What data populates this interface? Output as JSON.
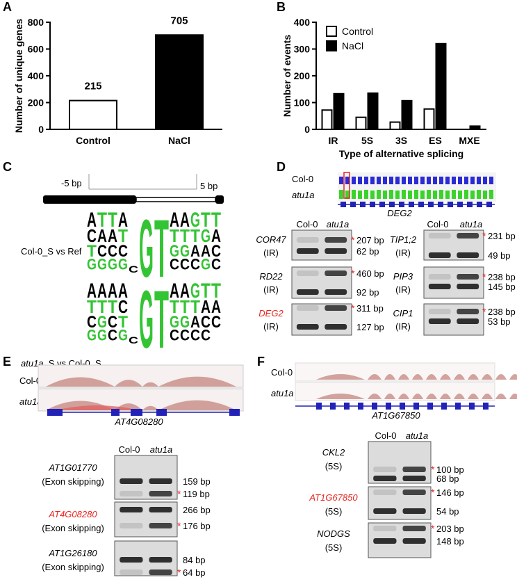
{
  "chart_data": [
    {
      "type": "bar",
      "label": "A",
      "ylabel": "Number of unique genes",
      "categories": [
        "Control",
        "NaCl"
      ],
      "values": [
        215,
        705
      ],
      "colors": [
        "#ffffff",
        "#000000"
      ],
      "ylim": [
        0,
        800
      ],
      "yticks": [
        0,
        200,
        400,
        600,
        800
      ]
    },
    {
      "type": "grouped_bar",
      "label": "B",
      "ylabel": "Number of events",
      "xlabel": "Type of alternative splicing",
      "categories": [
        "IR",
        "5S",
        "3S",
        "ES",
        "MXE"
      ],
      "series": [
        {
          "name": "Control",
          "color": "#ffffff",
          "values": [
            72,
            45,
            27,
            76,
            0
          ]
        },
        {
          "name": "NaCl",
          "color": "#000000",
          "values": [
            133,
            135,
            107,
            320,
            12
          ]
        }
      ],
      "ylim": [
        0,
        400
      ],
      "yticks": [
        0,
        100,
        200,
        300,
        400
      ],
      "legend": "top-left"
    }
  ],
  "panel_c": {
    "label": "C",
    "left_mark": "-5 bp",
    "right_mark": "5 bp",
    "letter_colors": {
      "A": "#000000",
      "C": "#000000",
      "G": "#33c433",
      "T": "#33c433"
    },
    "logos": [
      {
        "title": [
          {
            "text": "Col-0_S vs Ref"
          }
        ],
        "columns": [
          [
            "A",
            "C",
            "T",
            "G"
          ],
          [
            "T",
            "A",
            "C",
            "G"
          ],
          [
            "T",
            "A",
            "C",
            "G"
          ],
          [
            "A",
            "T",
            "C",
            "G"
          ],
          [
            "C"
          ],
          [
            "G"
          ],
          [
            "T"
          ],
          [
            "A",
            "T",
            "G",
            "C"
          ],
          [
            "A",
            "T",
            "G",
            "C"
          ],
          [
            "G",
            "T",
            "A",
            "C"
          ],
          [
            "T",
            "G",
            "A",
            "G"
          ],
          [
            "T",
            "A",
            "C",
            "C"
          ]
        ]
      },
      {
        "title": [
          {
            "text": "atu1a",
            "italic": true
          },
          {
            "text": "_S vs Col-0_S"
          }
        ],
        "columns": [
          [
            "A",
            "T",
            "C",
            "G"
          ],
          [
            "A",
            "T",
            "G",
            "G"
          ],
          [
            "A",
            "T",
            "C",
            "C"
          ],
          [
            "A",
            "C",
            "T",
            "G"
          ],
          [
            "C"
          ],
          [
            "G"
          ],
          [
            "T"
          ],
          [
            "A",
            "T",
            "G",
            "C"
          ],
          [
            "A",
            "T",
            "G",
            "C"
          ],
          [
            "G",
            "T",
            "A",
            "C"
          ],
          [
            "T",
            "A",
            "C",
            "C"
          ],
          [
            "T",
            "A",
            "C"
          ]
        ]
      }
    ]
  },
  "panel_d": {
    "label": "D",
    "lanes": [
      "Col-0",
      "atu1a"
    ],
    "gene": "DEG2",
    "gels": [
      {
        "gene": "COR47",
        "type": "(IR)",
        "bands": [
          {
            "size": "207 bp",
            "star": "*"
          },
          {
            "size": "62 bp"
          }
        ]
      },
      {
        "gene": "RD22",
        "type": "(IR)",
        "bands": [
          {
            "size": "460 bp",
            "star": "*"
          },
          {
            "size": "92 bp"
          }
        ]
      },
      {
        "gene": "DEG2",
        "color": "#e8251f",
        "type": "(IR)",
        "bands": [
          {
            "size": "311 bp",
            "star": "*"
          },
          {
            "size": "127 bp"
          }
        ]
      },
      {
        "gene": "TIP1;2",
        "type": "(IR)",
        "bands": [
          {
            "size": "231 bp",
            "star": "*"
          },
          {
            "size": "49 bp"
          }
        ]
      },
      {
        "gene": "PIP3",
        "type": "(IR)",
        "bands": [
          {
            "size": "238 bp",
            "star": "*"
          },
          {
            "size": "145 bp"
          }
        ]
      },
      {
        "gene": "CIP1",
        "type": "(IR)",
        "bands": [
          {
            "size": "238 bp",
            "star": "*"
          },
          {
            "size": "53 bp"
          }
        ]
      }
    ]
  },
  "panel_e": {
    "label": "E",
    "lanes": [
      "Col-0",
      "atu1a"
    ],
    "gene": "AT4G08280",
    "gels": [
      {
        "gene": "AT1G01770",
        "type": "(Exon skipping)",
        "bands": [
          {
            "size": "159 bp"
          },
          {
            "size": "119 bp",
            "star": "*"
          }
        ]
      },
      {
        "gene": "AT4G08280",
        "color": "#e8251f",
        "type": "(Exon skipping)",
        "bands": [
          {
            "size": "266 bp"
          },
          {
            "size": "176 bp",
            "star": "*"
          }
        ]
      },
      {
        "gene": "AT1G26180",
        "type": "(Exon skipping)",
        "bands": [
          {
            "size": "84 bp"
          },
          {
            "size": "64 bp",
            "star": "*"
          }
        ]
      }
    ]
  },
  "panel_f": {
    "label": "F",
    "lanes": [
      "Col-0",
      "atu1a"
    ],
    "gene": "AT1G67850",
    "gels": [
      {
        "gene": "CKL2",
        "type": "(5S)",
        "bands": [
          {
            "size": "100 bp",
            "star": "*"
          },
          {
            "size": "68 bp"
          }
        ]
      },
      {
        "gene": "AT1G67850",
        "color": "#e8251f",
        "type": "(5S)",
        "bands": [
          {
            "size": "146 bp",
            "star": "*"
          },
          {
            "size": "54 bp"
          }
        ]
      },
      {
        "gene": "NODGS",
        "type": "(5S)",
        "bands": [
          {
            "size": "203 bp",
            "star": "*"
          },
          {
            "size": "148 bp"
          }
        ]
      }
    ]
  }
}
